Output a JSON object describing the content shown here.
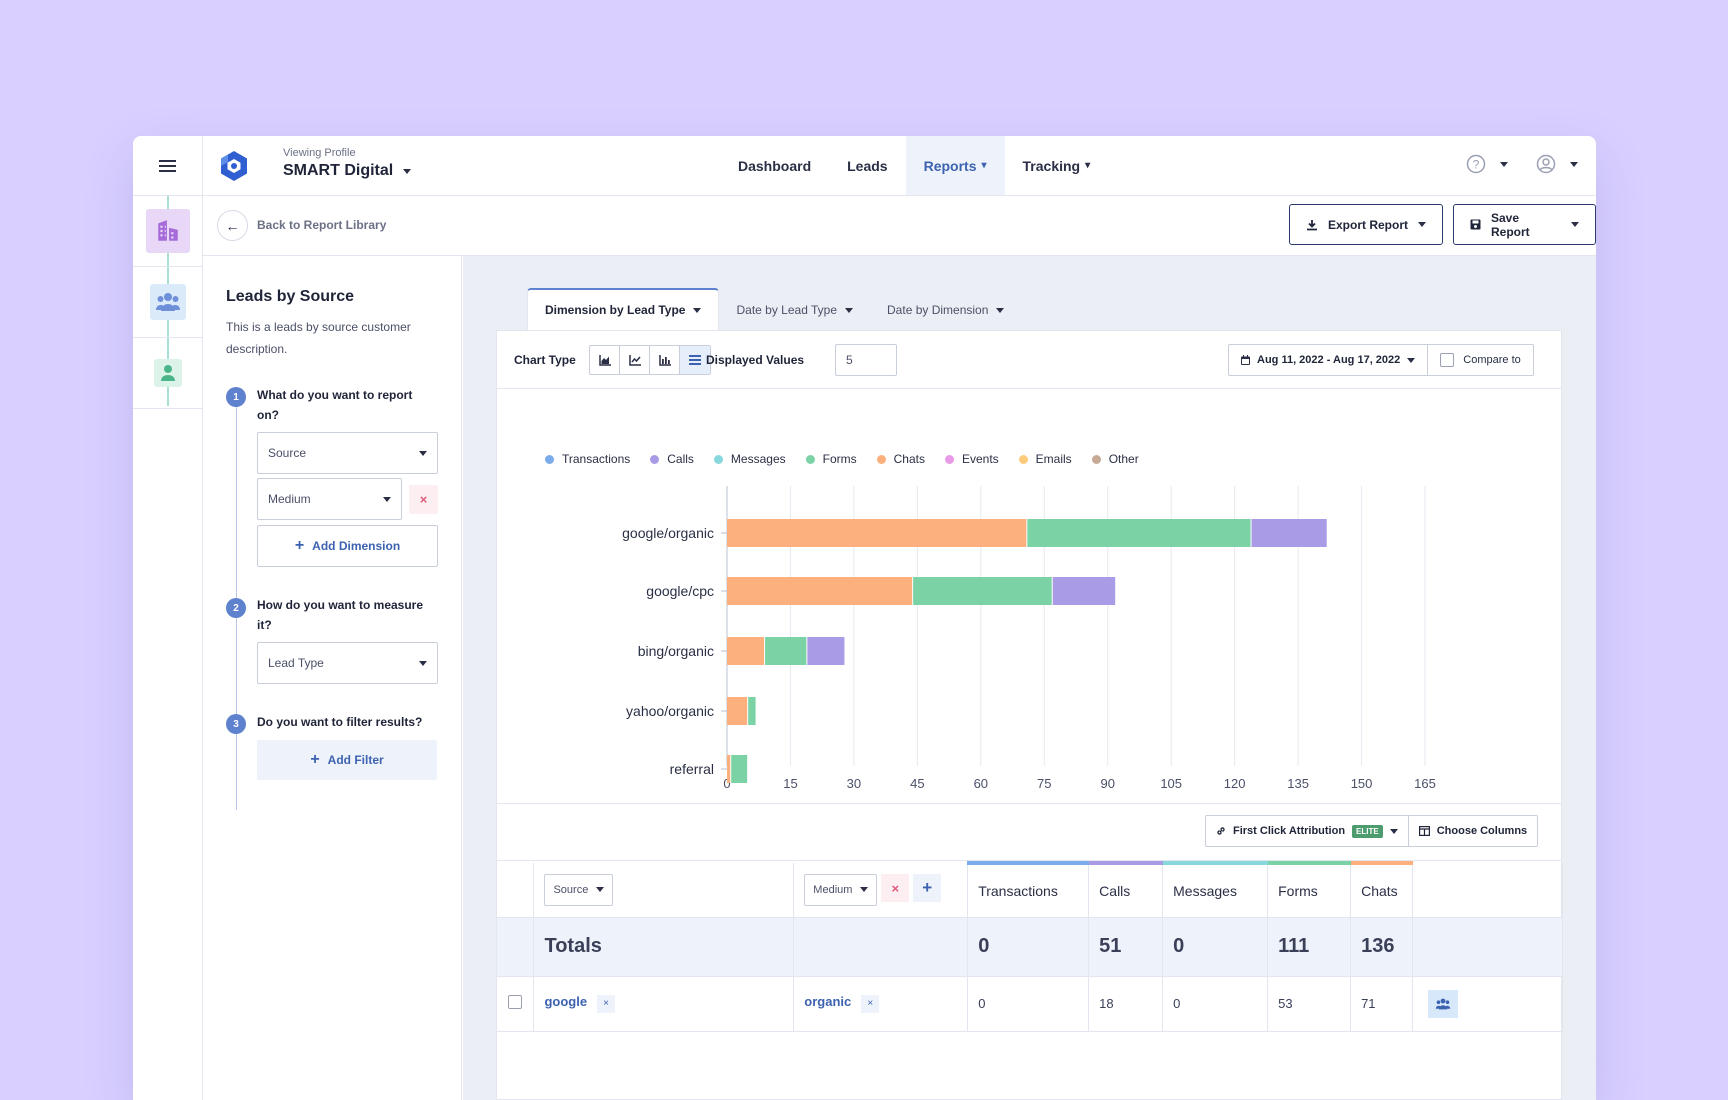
{
  "header": {
    "profile_caption": "Viewing Profile",
    "profile_name": "SMART Digital",
    "nav": [
      {
        "label": "Dashboard",
        "active": false,
        "dropdown": false
      },
      {
        "label": "Leads",
        "active": false,
        "dropdown": false
      },
      {
        "label": "Reports",
        "active": true,
        "dropdown": true
      },
      {
        "label": "Tracking",
        "active": false,
        "dropdown": true
      }
    ],
    "help_icon": "question-circle-icon",
    "user_icon": "user-circle-icon"
  },
  "rail": {
    "icons": [
      "building-icon",
      "users-icon",
      "user-icon"
    ],
    "tile_colors": [
      "#e8d7f7",
      "#dbeaf9",
      "#dcf3ea"
    ]
  },
  "breadcrumb": {
    "back_label": "Back to Report Library",
    "export_label": "Export Report",
    "save_label": "Save Report"
  },
  "sidebar": {
    "title": "Leads by Source",
    "description": "This is a leads by source customer description.",
    "steps": [
      {
        "number": "1",
        "question": "What do you want to report on?"
      },
      {
        "number": "2",
        "question": "How do you want to measure it?"
      },
      {
        "number": "3",
        "question": "Do you want to filter results?"
      }
    ],
    "dimension_1": "Source",
    "dimension_2": "Medium",
    "remove_glyph": "×",
    "add_dimension": "Add Dimension",
    "measure": "Lead Type",
    "add_filter": "Add Filter"
  },
  "tabs": [
    {
      "label": "Dimension by Lead Type",
      "active": true
    },
    {
      "label": "Date by Lead Type",
      "active": false
    },
    {
      "label": "Date by Dimension",
      "active": false
    }
  ],
  "toolbar": {
    "chart_type_label": "Chart Type",
    "chart_type_options": [
      "area-chart-icon",
      "line-chart-icon",
      "bar-chart-icon",
      "horizontal-bar-icon"
    ],
    "chart_type_selected": "horizontal-bar-icon",
    "displayed_values_label": "Displayed Values",
    "displayed_values": "5",
    "date_range": "Aug 11, 2022 - Aug 17, 2022",
    "compare_label": "Compare to"
  },
  "chart_data": {
    "type": "bar",
    "orientation": "horizontal",
    "stacked": true,
    "categories": [
      "google/organic",
      "google/cpc",
      "bing/organic",
      "yahoo/organic",
      "referral"
    ],
    "legend": [
      {
        "name": "Transactions",
        "color": "#7aabea"
      },
      {
        "name": "Calls",
        "color": "#a99be6"
      },
      {
        "name": "Messages",
        "color": "#86d8dc"
      },
      {
        "name": "Forms",
        "color": "#7bd3a5"
      },
      {
        "name": "Chats",
        "color": "#fbb07e"
      },
      {
        "name": "Events",
        "color": "#e89ae6"
      },
      {
        "name": "Emails",
        "color": "#fccb7c"
      },
      {
        "name": "Other",
        "color": "#c7aa95"
      }
    ],
    "series": [
      {
        "name": "Chats",
        "color": "#fbb07e",
        "values": [
          71,
          44,
          9,
          5,
          1
        ]
      },
      {
        "name": "Forms",
        "color": "#7bd3a5",
        "values": [
          53,
          33,
          10,
          2,
          4
        ]
      },
      {
        "name": "Calls",
        "color": "#a99be6",
        "values": [
          18,
          15,
          9,
          0,
          0
        ]
      }
    ],
    "xlim": [
      0,
      165
    ],
    "xticks": [
      "0",
      "15",
      "30",
      "45",
      "60",
      "75",
      "90",
      "105",
      "120",
      "135",
      "150",
      "165"
    ],
    "grid": true,
    "legend_position": "top-left"
  },
  "table": {
    "attribution_label": "First Click Attribution",
    "elite_badge": "ELITE",
    "choose_columns_label": "Choose Columns",
    "dim_1": "Source",
    "dim_2": "Medium",
    "remove_glyph": "×",
    "add_glyph": "+",
    "columns": [
      {
        "label": "Transactions",
        "color": "#7aabea"
      },
      {
        "label": "Calls",
        "color": "#a99be6"
      },
      {
        "label": "Messages",
        "color": "#86d8dc"
      },
      {
        "label": "Forms",
        "color": "#7bd3a5"
      },
      {
        "label": "Chats",
        "color": "#fbb07e"
      }
    ],
    "totals_label": "Totals",
    "totals": [
      "0",
      "51",
      "0",
      "111",
      "136"
    ],
    "rows": [
      {
        "source": "google",
        "medium": "organic",
        "values": [
          "0",
          "18",
          "0",
          "53",
          "71"
        ],
        "tag_glyph": "×"
      }
    ]
  }
}
